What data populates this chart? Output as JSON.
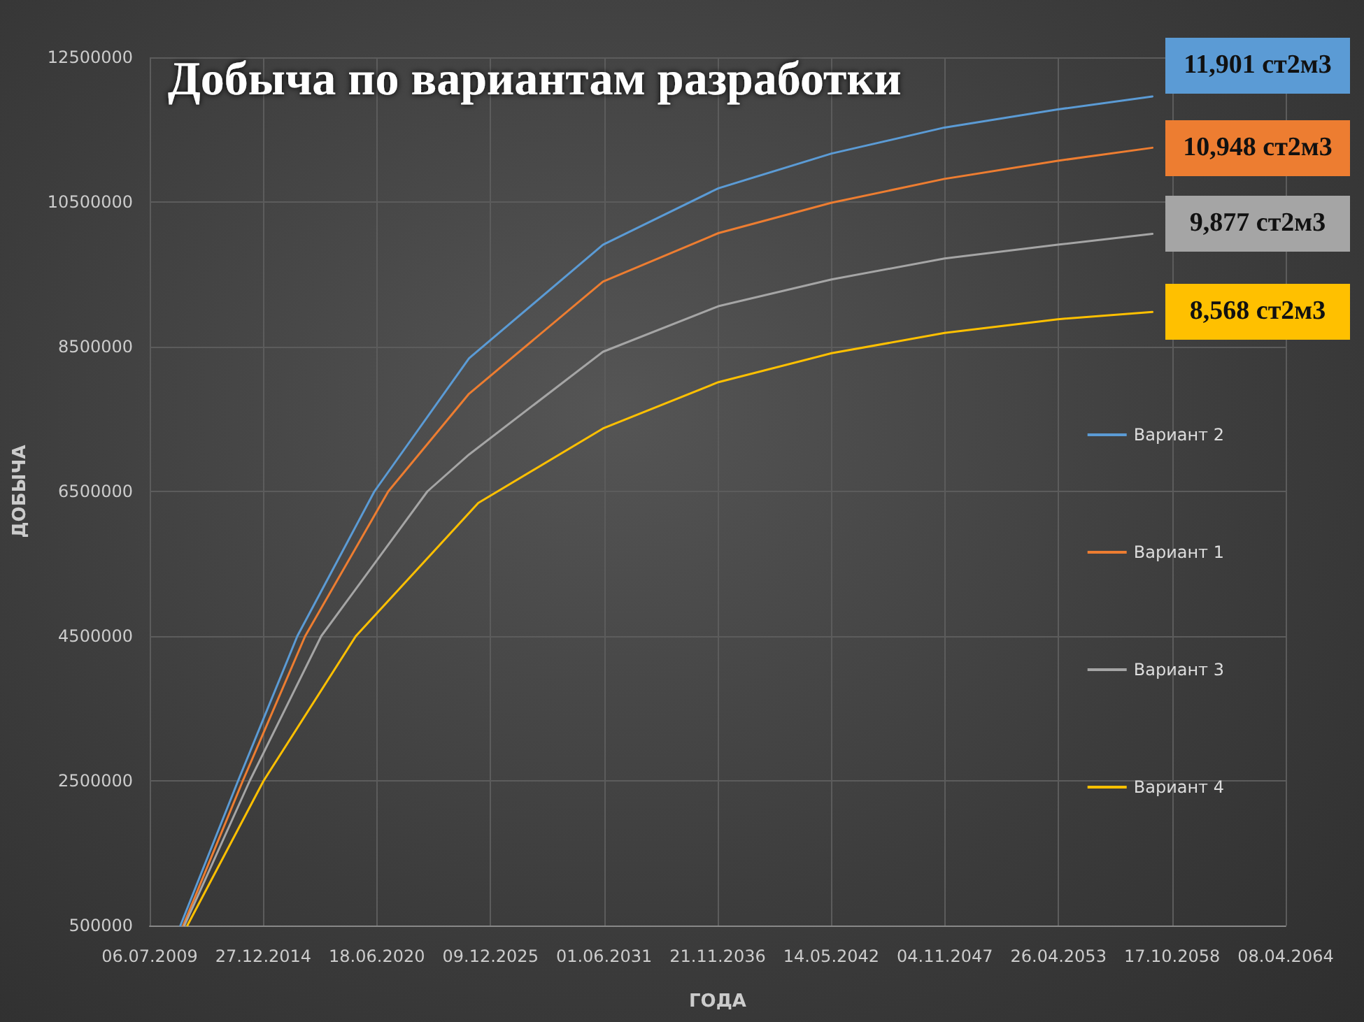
{
  "chart_data": {
    "type": "line",
    "title": "Добыча по вариантам разработки",
    "xlabel": "ГОДА",
    "ylabel": "ДОБЫЧА",
    "xlim": [
      "2009-07-06",
      "2064-04-08"
    ],
    "xticks": [
      {
        "value": "2009-07-06",
        "label": "06.07.2009"
      },
      {
        "value": "2014-12-27",
        "label": "27.12.2014"
      },
      {
        "value": "2020-06-18",
        "label": "18.06.2020"
      },
      {
        "value": "2025-12-09",
        "label": "09.12.2025"
      },
      {
        "value": "2031-06-01",
        "label": "01.06.2031"
      },
      {
        "value": "2036-11-21",
        "label": "21.11.2036"
      },
      {
        "value": "2042-05-14",
        "label": "14.05.2042"
      },
      {
        "value": "2047-11-04",
        "label": "04.11.2047"
      },
      {
        "value": "2053-04-26",
        "label": "26.04.2053"
      },
      {
        "value": "2058-10-17",
        "label": "17.10.2058"
      },
      {
        "value": "2064-04-08",
        "label": "08.04.2064"
      }
    ],
    "ylim": [
      500000,
      12500000
    ],
    "yticks": [
      500000,
      2500000,
      4500000,
      6500000,
      8500000,
      10500000,
      12500000
    ],
    "grid": true,
    "legend": "right",
    "marker": "none",
    "line_style": "solid",
    "series": [
      {
        "name": "Вариант 2",
        "color": "#5b9bd5",
        "x": [
          "2010-12-29",
          "2013-10-09",
          "2016-08-17",
          "2020-05-05",
          "2024-11-26",
          "2031-05-12",
          "2036-12-03",
          "2042-05-19",
          "2047-10-30",
          "2053-04-14",
          "2057-11-05"
        ],
        "values": [
          500000,
          2500000,
          4500000,
          6500000,
          8340000,
          9910000,
          10690000,
          11170000,
          11530000,
          11780000,
          11960000
        ]
      },
      {
        "name": "Вариант 1",
        "color": "#ed7d31",
        "x": [
          "2011-02-15",
          "2013-12-31",
          "2017-01-02",
          "2021-01-04",
          "2024-11-26",
          "2031-05-12",
          "2036-12-03",
          "2042-05-19",
          "2047-10-30",
          "2053-04-14",
          "2057-11-05"
        ],
        "values": [
          500000,
          2500000,
          4500000,
          6500000,
          7850000,
          9400000,
          10070000,
          10490000,
          10820000,
          11070000,
          11250000
        ]
      },
      {
        "name": "Вариант 3",
        "color": "#a5a5a5",
        "x": [
          "2011-03-10",
          "2014-05-02",
          "2017-10-12",
          "2022-11-24",
          "2024-11-26",
          "2031-05-12",
          "2036-12-03",
          "2042-05-19",
          "2047-10-30",
          "2053-04-14",
          "2057-11-05"
        ],
        "values": [
          500000,
          2500000,
          4500000,
          6500000,
          7010000,
          8430000,
          9060000,
          9430000,
          9720000,
          9910000,
          10060000
        ]
      },
      {
        "name": "Вариант 4",
        "color": "#ffc000",
        "x": [
          "2011-04-30",
          "2015-01-01",
          "2019-06-13",
          "2025-05-08",
          "2031-05-12",
          "2036-12-03",
          "2042-05-19",
          "2047-10-30",
          "2053-04-14",
          "2057-11-05"
        ],
        "values": [
          500000,
          2500000,
          4500000,
          6340000,
          7370000,
          8010000,
          8410000,
          8690000,
          8880000,
          8980000
        ]
      }
    ],
    "annotations": [
      "11,901 ст2м3",
      "10,948 ст2м3",
      "9,877 ст2м3",
      "8,568 ст2м3"
    ]
  }
}
